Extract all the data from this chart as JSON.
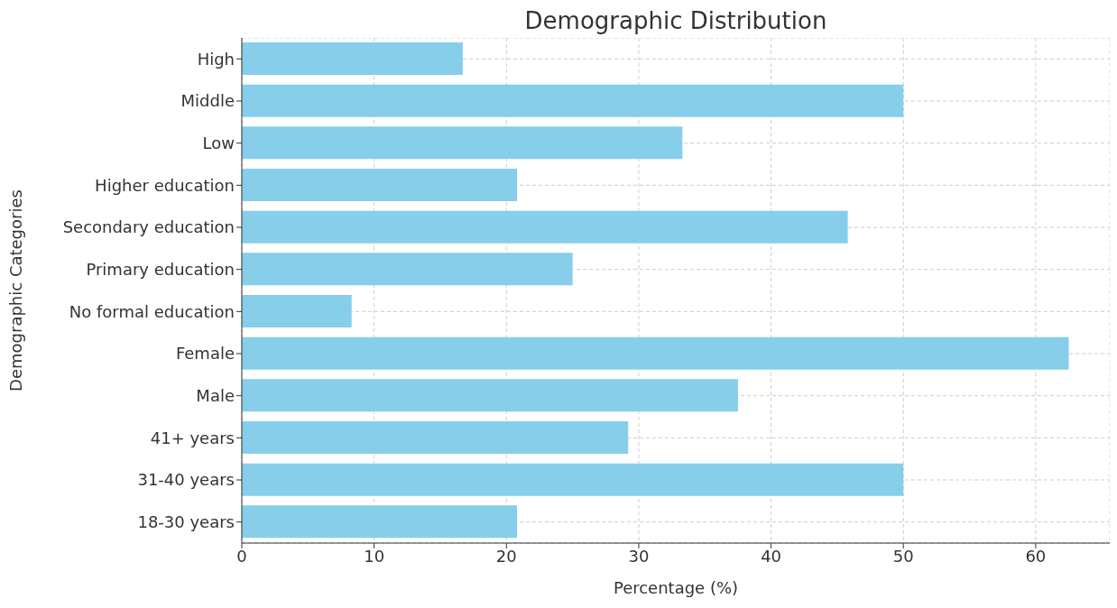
{
  "chart_data": {
    "type": "bar",
    "orientation": "horizontal",
    "title": "Demographic Distribution",
    "xlabel": "Percentage (%)",
    "ylabel": "Demographic Categories",
    "categories": [
      "High",
      "Middle",
      "Low",
      "Higher education",
      "Secondary education",
      "Primary education",
      "No formal education",
      "Female",
      "Male",
      "41+ years",
      "31-40 years",
      "18-30 years"
    ],
    "values": [
      16.7,
      50,
      33.3,
      20.8,
      45.8,
      25,
      8.3,
      62.5,
      37.5,
      29.2,
      50,
      20.8
    ],
    "color": "#87ceeb",
    "xlim": [
      0,
      65.6
    ],
    "xticks": [
      0,
      10,
      20,
      30,
      40,
      50,
      60
    ],
    "grid": true
  }
}
